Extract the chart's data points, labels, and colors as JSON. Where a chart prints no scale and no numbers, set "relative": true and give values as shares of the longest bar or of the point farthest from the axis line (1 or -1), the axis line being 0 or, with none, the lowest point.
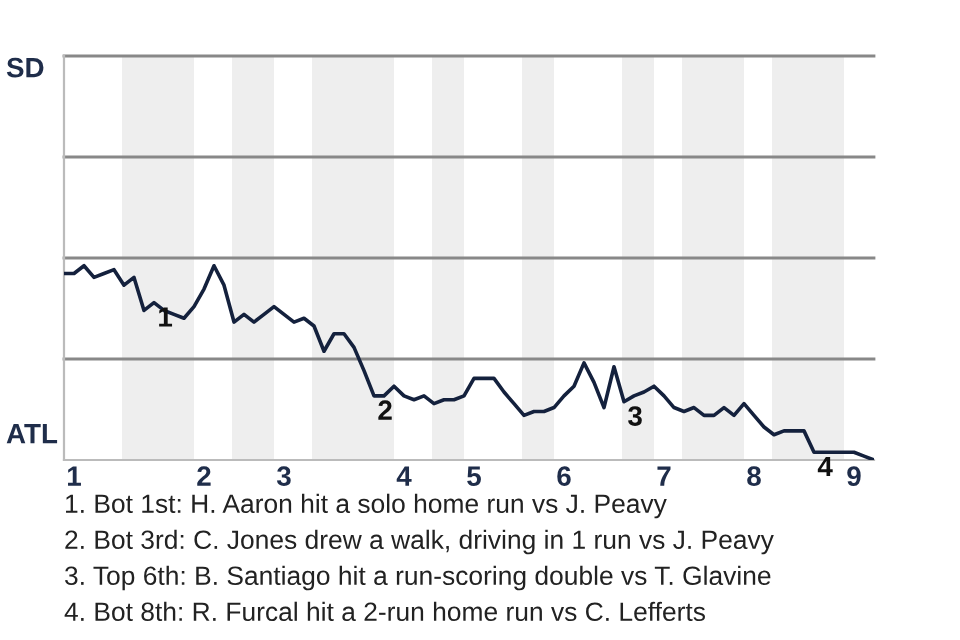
{
  "chart_data": {
    "type": "line",
    "relative": true,
    "categories": [
      null,
      "1",
      null,
      null,
      null,
      null,
      null,
      null,
      null,
      null,
      null,
      null,
      null,
      null,
      "2",
      null,
      null,
      null,
      null,
      null,
      null,
      null,
      "3",
      null,
      null,
      null,
      null,
      null,
      null,
      null,
      null,
      null,
      null,
      null,
      "4",
      null,
      null,
      null,
      null,
      null,
      null,
      "5",
      null,
      null,
      null,
      null,
      null,
      null,
      null,
      null,
      "6",
      null,
      null,
      null,
      null,
      null,
      null,
      null,
      null,
      null,
      "7",
      null,
      null,
      null,
      null,
      null,
      null,
      null,
      null,
      "8",
      null,
      null,
      null,
      null,
      null,
      null,
      null,
      null,
      null,
      "9",
      null,
      null
    ],
    "series": [
      {
        "color": "#14213d",
        "values": [
          0.96,
          0.96,
          1,
          0.94,
          0.96,
          0.98,
          0.9,
          0.94,
          0.77,
          0.81,
          0.77,
          0.75,
          0.73,
          0.79,
          0.88,
          1,
          0.9,
          0.71,
          0.75,
          0.71,
          0.75,
          0.79,
          0.75,
          0.71,
          0.73,
          0.69,
          0.56,
          0.65,
          0.65,
          0.58,
          0.46,
          0.33,
          0.33,
          0.38,
          0.33,
          0.31,
          0.33,
          0.29,
          0.31,
          0.31,
          0.33,
          0.42,
          0.42,
          0.42,
          0.35,
          0.29,
          0.23,
          0.25,
          0.25,
          0.27,
          0.33,
          0.38,
          0.5,
          0.4,
          0.27,
          0.48,
          0.3,
          0.33,
          0.35,
          0.38,
          0.33,
          0.27,
          0.25,
          0.27,
          0.23,
          0.23,
          0.27,
          0.23,
          0.29,
          0.23,
          0.17,
          0.13,
          0.15,
          0.15,
          0.15,
          0.04,
          0.04,
          0.04,
          0.04,
          0.04,
          0.02,
          0
        ]
      }
    ],
    "marker": "none",
    "line_style": "solid",
    "ref_lines": [
      {
        "axis": "y",
        "value": 0.52,
        "color": "#888888"
      },
      {
        "axis": "y",
        "value": 1.04,
        "color": "#888888"
      },
      {
        "axis": "y",
        "value": 1.56,
        "color": "#888888"
      },
      {
        "axis": "y",
        "value": 2.08,
        "color": "#888888"
      }
    ],
    "annotations": [
      "SD",
      "ATL",
      {
        "text": "1",
        "y": 0.81
      },
      {
        "text": "2",
        "y": 0.33
      },
      {
        "text": "3",
        "y": 0.3
      },
      {
        "text": "4",
        "y": 0.04
      },
      "1. Bot 1st: H. Aaron hit a solo home run vs J. Peavy",
      "2. Bot 3rd: C. Jones drew a walk, driving in 1 run vs J. Peavy",
      "3. Top 6th: B. Santiago hit a run-scoring double vs T. Glavine",
      "4. Bot 8th: R. Furcal hit a 2-run home run vs C. Lefferts"
    ]
  }
}
